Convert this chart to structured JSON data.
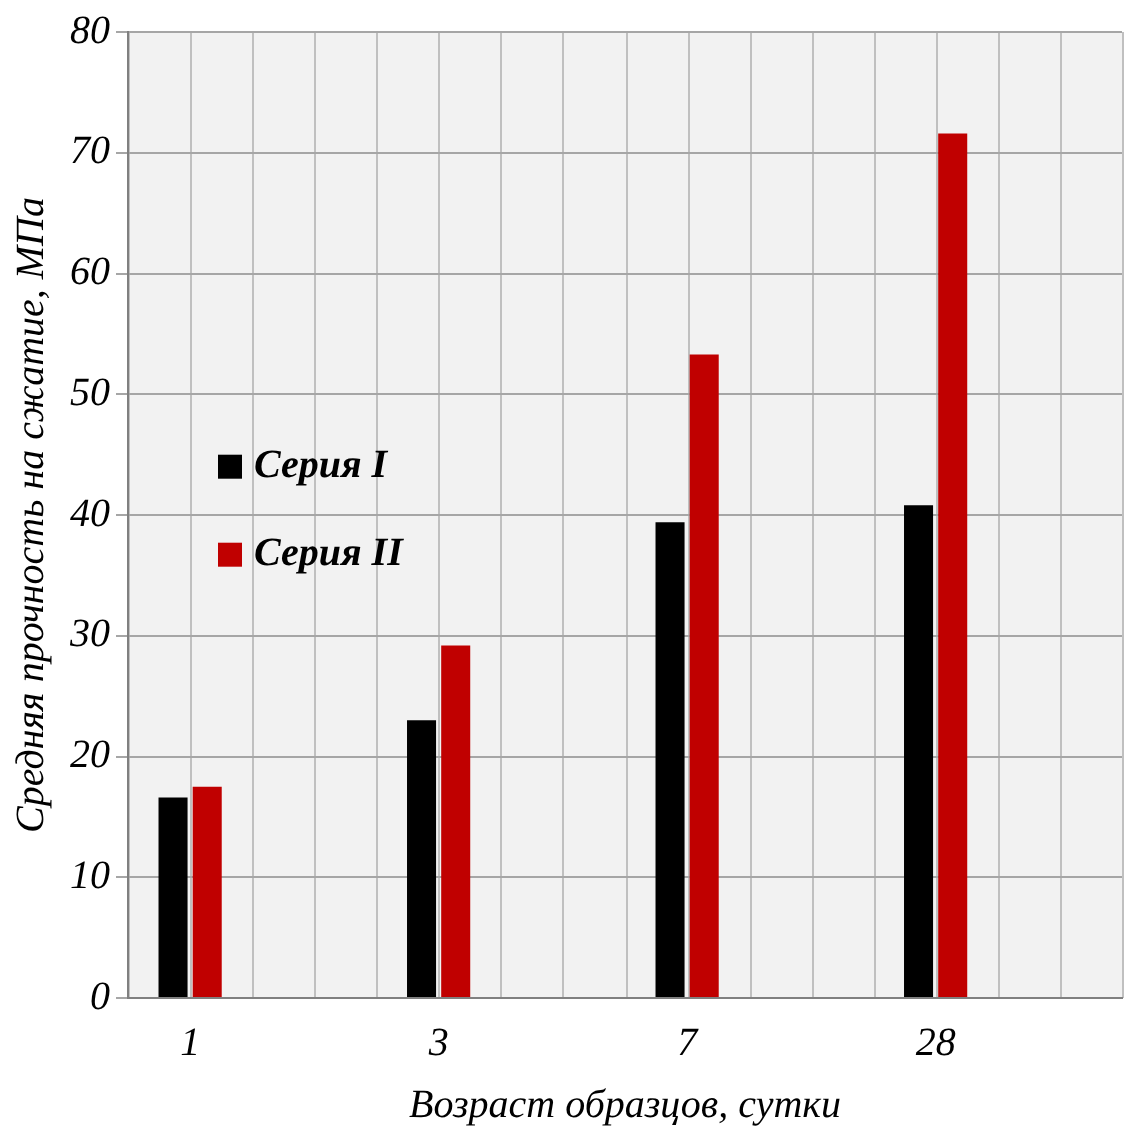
{
  "chart_data": {
    "type": "bar",
    "xlabel": "Возраст образцов, сутки",
    "ylabel": "Средняя прочность на сжатие, МПа",
    "categories": [
      "1",
      null,
      "3",
      null,
      "7",
      null,
      "28",
      null
    ],
    "series": [
      {
        "name": "Серия I",
        "color": "#000000",
        "values": [
          16.6,
          null,
          23.0,
          null,
          39.4,
          null,
          40.8,
          null
        ]
      },
      {
        "name": "Серия II",
        "color": "#c00000",
        "values": [
          17.5,
          null,
          29.2,
          null,
          53.3,
          null,
          71.6,
          null
        ]
      }
    ],
    "ylim": [
      0,
      80
    ],
    "yticks": [
      0,
      10,
      20,
      30,
      40,
      50,
      60,
      70,
      80
    ],
    "grid": true,
    "legend": "left"
  }
}
